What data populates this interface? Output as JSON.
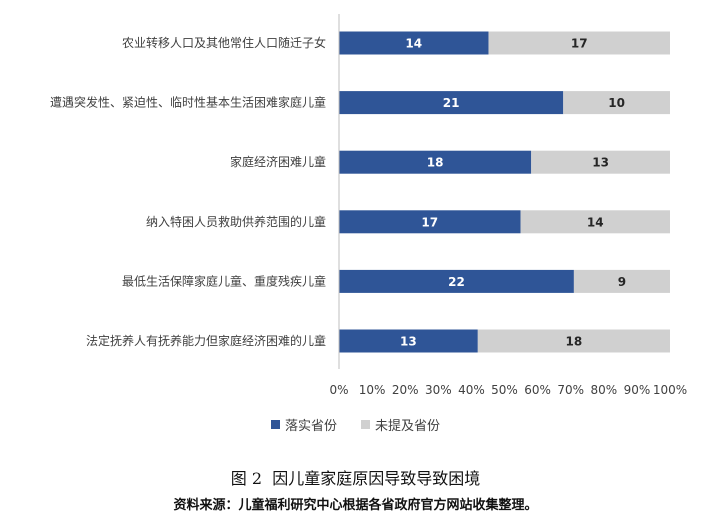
{
  "chart_data": {
    "type": "bar",
    "orientation": "horizontal",
    "stacking": "percent",
    "categories": [
      "农业转移人口及其他常住人口随迁子女",
      "遭遇突发性、紧迫性、临时性基本生活困难家庭儿童",
      "家庭经济困难儿童",
      "纳入特困人员救助供养范围的儿童",
      "最低生活保障家庭儿童、重度残疾儿童",
      "法定抚养人有抚养能力但家庭经济困难的儿童"
    ],
    "series": [
      {
        "name": "落实省份",
        "values": [
          14,
          21,
          18,
          17,
          22,
          13
        ],
        "color": "#2f5597",
        "label_color": "#ffffff"
      },
      {
        "name": "未提及省份",
        "values": [
          17,
          10,
          13,
          14,
          9,
          18
        ],
        "color": "#d0d0d0",
        "label_color": "#262626"
      }
    ],
    "xticks": [
      "0%",
      "10%",
      "20%",
      "30%",
      "40%",
      "50%",
      "60%",
      "70%",
      "80%",
      "90%",
      "100%"
    ],
    "xlim": [
      0,
      100
    ],
    "grid": false,
    "legend_position": "bottom"
  },
  "caption": {
    "figure_no": "图 2",
    "title": "因儿童家庭原因导致导致困境"
  },
  "source": "资料来源：儿童福利研究中心根据各省政府官方网站收集整理。"
}
